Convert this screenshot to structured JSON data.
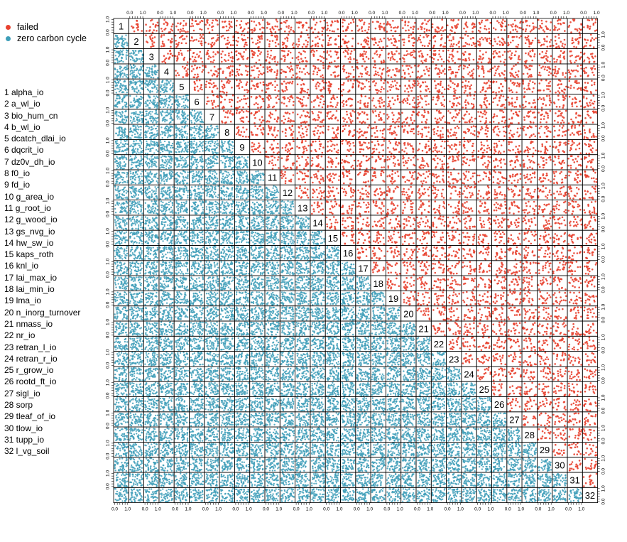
{
  "legend": [
    {
      "label": "failed",
      "color": "#E8412F"
    },
    {
      "label": "zero carbon cycle",
      "color": "#3E9EB8"
    }
  ],
  "chart_data": {
    "type": "scatter",
    "layout": "pairs-matrix",
    "n_vars": 32,
    "diagonal_labels": [
      "1",
      "2",
      "3",
      "4",
      "5",
      "6",
      "7",
      "8",
      "9",
      "10",
      "11",
      "12",
      "13",
      "14",
      "15",
      "16",
      "17",
      "18",
      "19",
      "20",
      "21",
      "22",
      "23",
      "24",
      "25",
      "26",
      "27",
      "28",
      "29",
      "30",
      "31",
      "32"
    ],
    "variables": [
      "alpha_io",
      "a_wl_io",
      "bio_hum_cn",
      "b_wl_io",
      "dcatch_dlai_io",
      "dqcrit_io",
      "dz0v_dh_io",
      "f0_io",
      "fd_io",
      "g_area_io",
      "g_root_io",
      "g_wood_io",
      "gs_nvg_io",
      "hw_sw_io",
      "kaps_roth",
      "knl_io",
      "lai_max_io",
      "lai_min_io",
      "lma_io",
      "n_inorg_turnover",
      "nmass_io",
      "nr_io",
      "retran_l_io",
      "retran_r_io",
      "r_grow_io",
      "rootd_ft_io",
      "sigl_io",
      "sorp",
      "tleaf_of_io",
      "tlow_io",
      "tupp_io",
      "l_vg_soil"
    ],
    "axis_range": [
      0,
      1
    ],
    "tick_labels": [
      "0.0",
      "1.0"
    ],
    "upper_panels_series": "failed",
    "lower_panels_series": "zero carbon cycle",
    "upper_color": "#E8412F",
    "lower_color": "#3E9EB8"
  }
}
